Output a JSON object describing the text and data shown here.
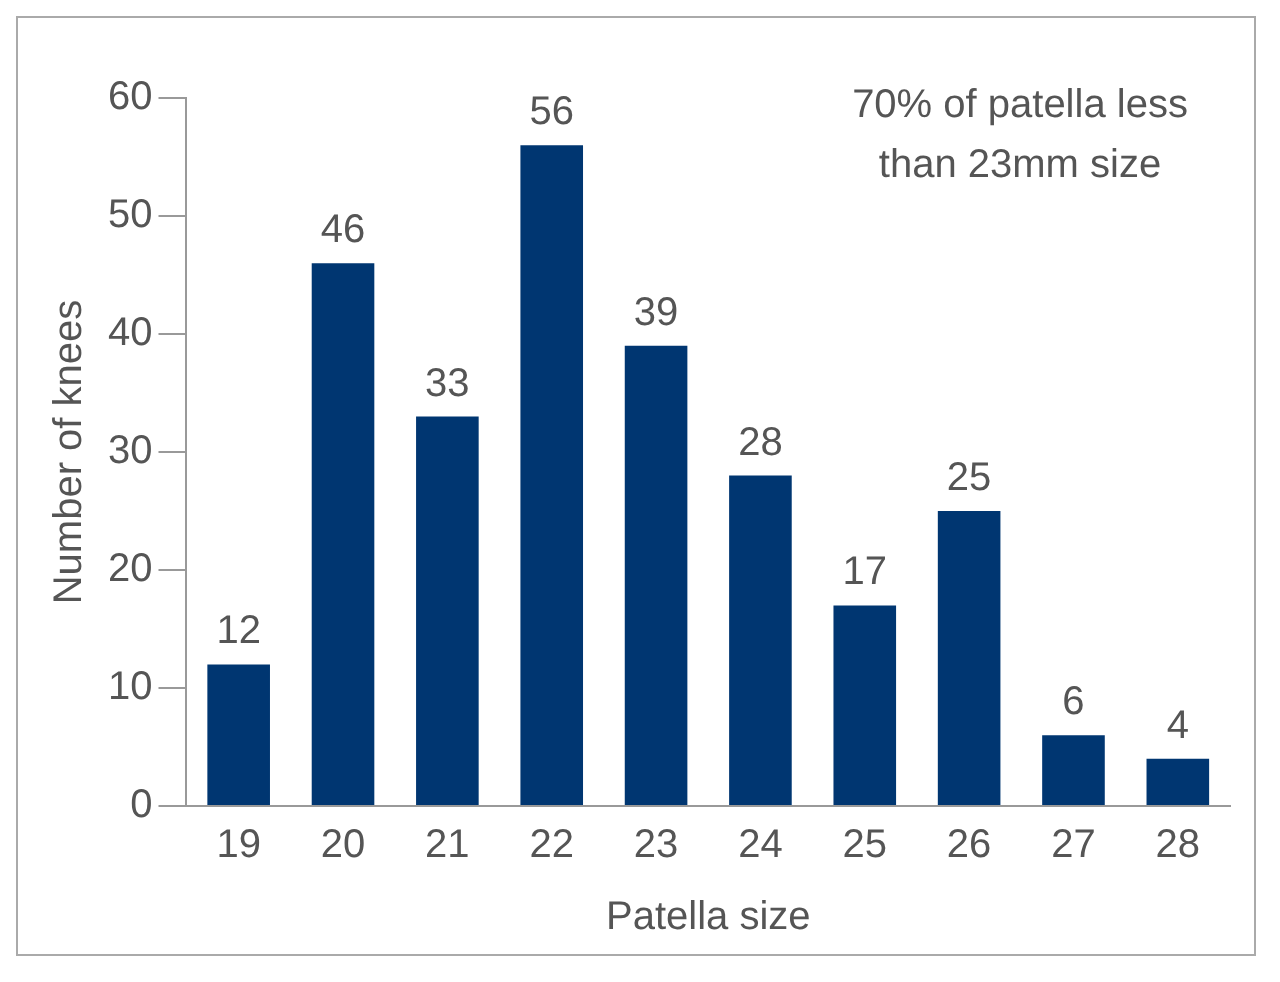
{
  "chart_data": {
    "type": "bar",
    "xlabel": "Patella size",
    "ylabel": "Number of knees",
    "categories": [
      "19",
      "20",
      "21",
      "22",
      "23",
      "24",
      "25",
      "26",
      "27",
      "28"
    ],
    "values": [
      12,
      46,
      33,
      56,
      39,
      28,
      17,
      25,
      6,
      4
    ],
    "color": "#003671",
    "ylim": [
      0,
      60
    ],
    "yticks": [
      0,
      10,
      20,
      30,
      40,
      50,
      60
    ],
    "grid": false,
    "data_labels": true,
    "annotations": [
      "70% of patella less than 23mm size"
    ]
  }
}
